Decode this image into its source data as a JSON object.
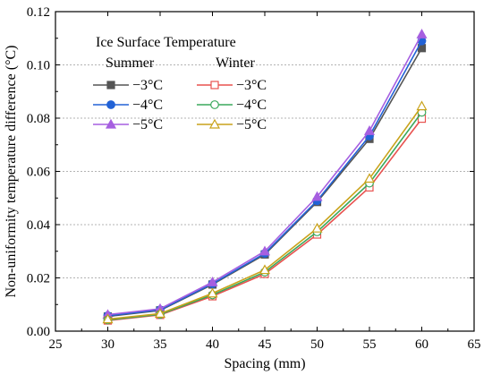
{
  "chart_data": {
    "type": "line",
    "xlabel": "Spacing (mm)",
    "ylabel": "Non-uniformity temperature difference (°C)",
    "x_ticks": [
      "25",
      "30",
      "35",
      "40",
      "45",
      "50",
      "55",
      "60",
      "65"
    ],
    "y_ticks": [
      "0.00",
      "0.02",
      "0.04",
      "0.06",
      "0.08",
      "0.10",
      "0.12"
    ],
    "xlim": [
      25,
      65
    ],
    "ylim": [
      0,
      0.12
    ],
    "grid": "horizontal-dashed",
    "legend": {
      "title": "Ice Surface Temperature",
      "group_titles": [
        "Summer",
        "Winter"
      ],
      "placement": "top-left"
    },
    "x": [
      30,
      35,
      40,
      45,
      50,
      55,
      60
    ],
    "series": [
      {
        "name": "−3°C",
        "group": "Summer",
        "color": "#555555",
        "marker": "square-filled",
        "values": [
          0.0055,
          0.0078,
          0.0175,
          0.0288,
          0.0485,
          0.0722,
          0.1063
        ]
      },
      {
        "name": "−4°C",
        "group": "Summer",
        "color": "#2262d6",
        "marker": "circle-filled",
        "values": [
          0.0058,
          0.008,
          0.0178,
          0.0292,
          0.049,
          0.0733,
          0.109
        ]
      },
      {
        "name": "−5°C",
        "group": "Summer",
        "color": "#a65fe0",
        "marker": "triangle-filled",
        "values": [
          0.0062,
          0.0084,
          0.0184,
          0.03,
          0.0505,
          0.0752,
          0.1115
        ]
      },
      {
        "name": "−3°C",
        "group": "Winter",
        "color": "#e8524f",
        "marker": "square-open",
        "values": [
          0.004,
          0.0061,
          0.0131,
          0.0215,
          0.0363,
          0.054,
          0.0798
        ]
      },
      {
        "name": "−4°C",
        "group": "Winter",
        "color": "#3aa85c",
        "marker": "circle-open",
        "values": [
          0.0042,
          0.0063,
          0.0136,
          0.0222,
          0.0373,
          0.0556,
          0.0822
        ]
      },
      {
        "name": "−5°C",
        "group": "Winter",
        "color": "#c9a21a",
        "marker": "triangle-open",
        "values": [
          0.0045,
          0.0066,
          0.0142,
          0.023,
          0.0386,
          0.0573,
          0.0845
        ]
      }
    ]
  }
}
